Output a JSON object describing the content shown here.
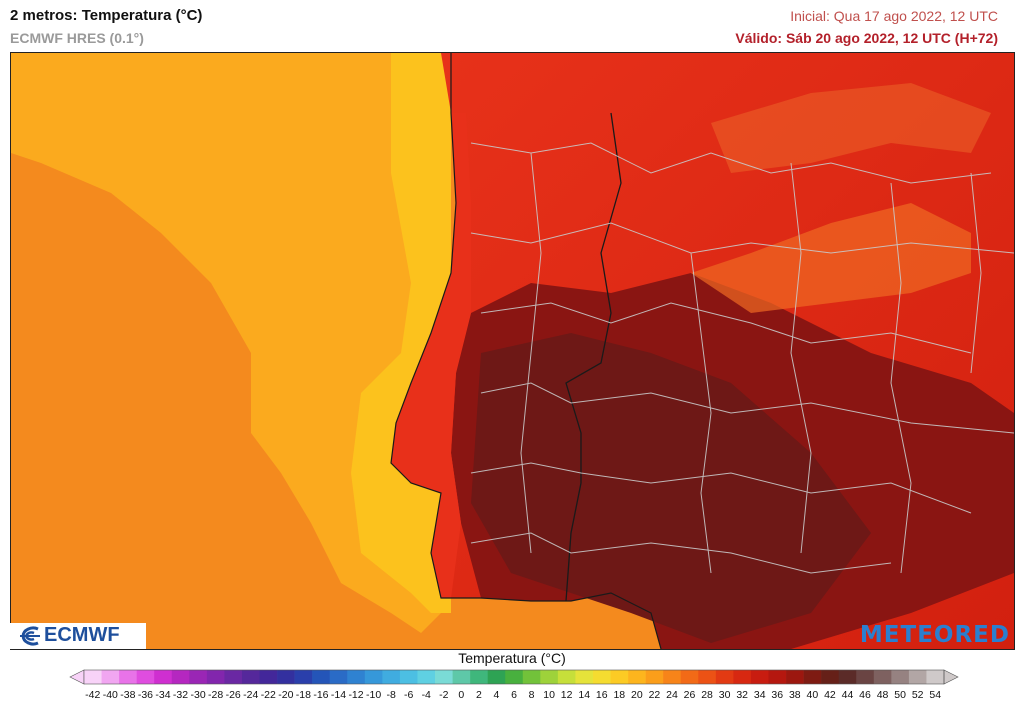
{
  "header": {
    "title": "2 metros: Temperatura (°C)",
    "model": "ECMWF HRES (0.1°)",
    "init": "Inicial: Qua 17 ago 2022, 12 UTC",
    "valid": "Válido: Sáb 20 ago 2022, 12 UTC (H+72)"
  },
  "logos": {
    "ecmwf": "ECMWF",
    "meteored": "METEORED"
  },
  "legend": {
    "title": "Temperatura (°C)",
    "ticks": [
      "-42",
      "-40",
      "-38",
      "-36",
      "-34",
      "-32",
      "-30",
      "-28",
      "-26",
      "-24",
      "-22",
      "-20",
      "-18",
      "-16",
      "-14",
      "-12",
      "-10",
      "-8",
      "-6",
      "-4",
      "-2",
      "0",
      "2",
      "4",
      "6",
      "8",
      "10",
      "12",
      "14",
      "16",
      "18",
      "20",
      "22",
      "24",
      "26",
      "28",
      "30",
      "32",
      "34",
      "36",
      "38",
      "40",
      "42",
      "44",
      "46",
      "48",
      "50",
      "52",
      "54"
    ],
    "colors": [
      "#f8d3f8",
      "#f1a6f1",
      "#e873e8",
      "#df4ddf",
      "#cf2fd0",
      "#b527c0",
      "#9a26b5",
      "#8226ad",
      "#6a28a3",
      "#55289b",
      "#43279a",
      "#33309f",
      "#2a3fab",
      "#2455b8",
      "#2a6bc6",
      "#2f82d1",
      "#3698da",
      "#40ace0",
      "#4cbfe3",
      "#5fd0e2",
      "#7adbd6",
      "#5ec8a8",
      "#3fb77c",
      "#2ea354",
      "#48b03e",
      "#72c23a",
      "#9ed23a",
      "#c6df3a",
      "#e5e33a",
      "#f5dc30",
      "#fccb24",
      "#fdb51d",
      "#fb9e1a",
      "#f78419",
      "#f26a17",
      "#ec5215",
      "#e23a13",
      "#d72811",
      "#c81c10",
      "#b5170f",
      "#9c170f",
      "#7e1b12",
      "#662018",
      "#5b2b28",
      "#6a4443",
      "#7e6160",
      "#968281",
      "#b2a6a5",
      "#cfc9c9"
    ]
  }
}
